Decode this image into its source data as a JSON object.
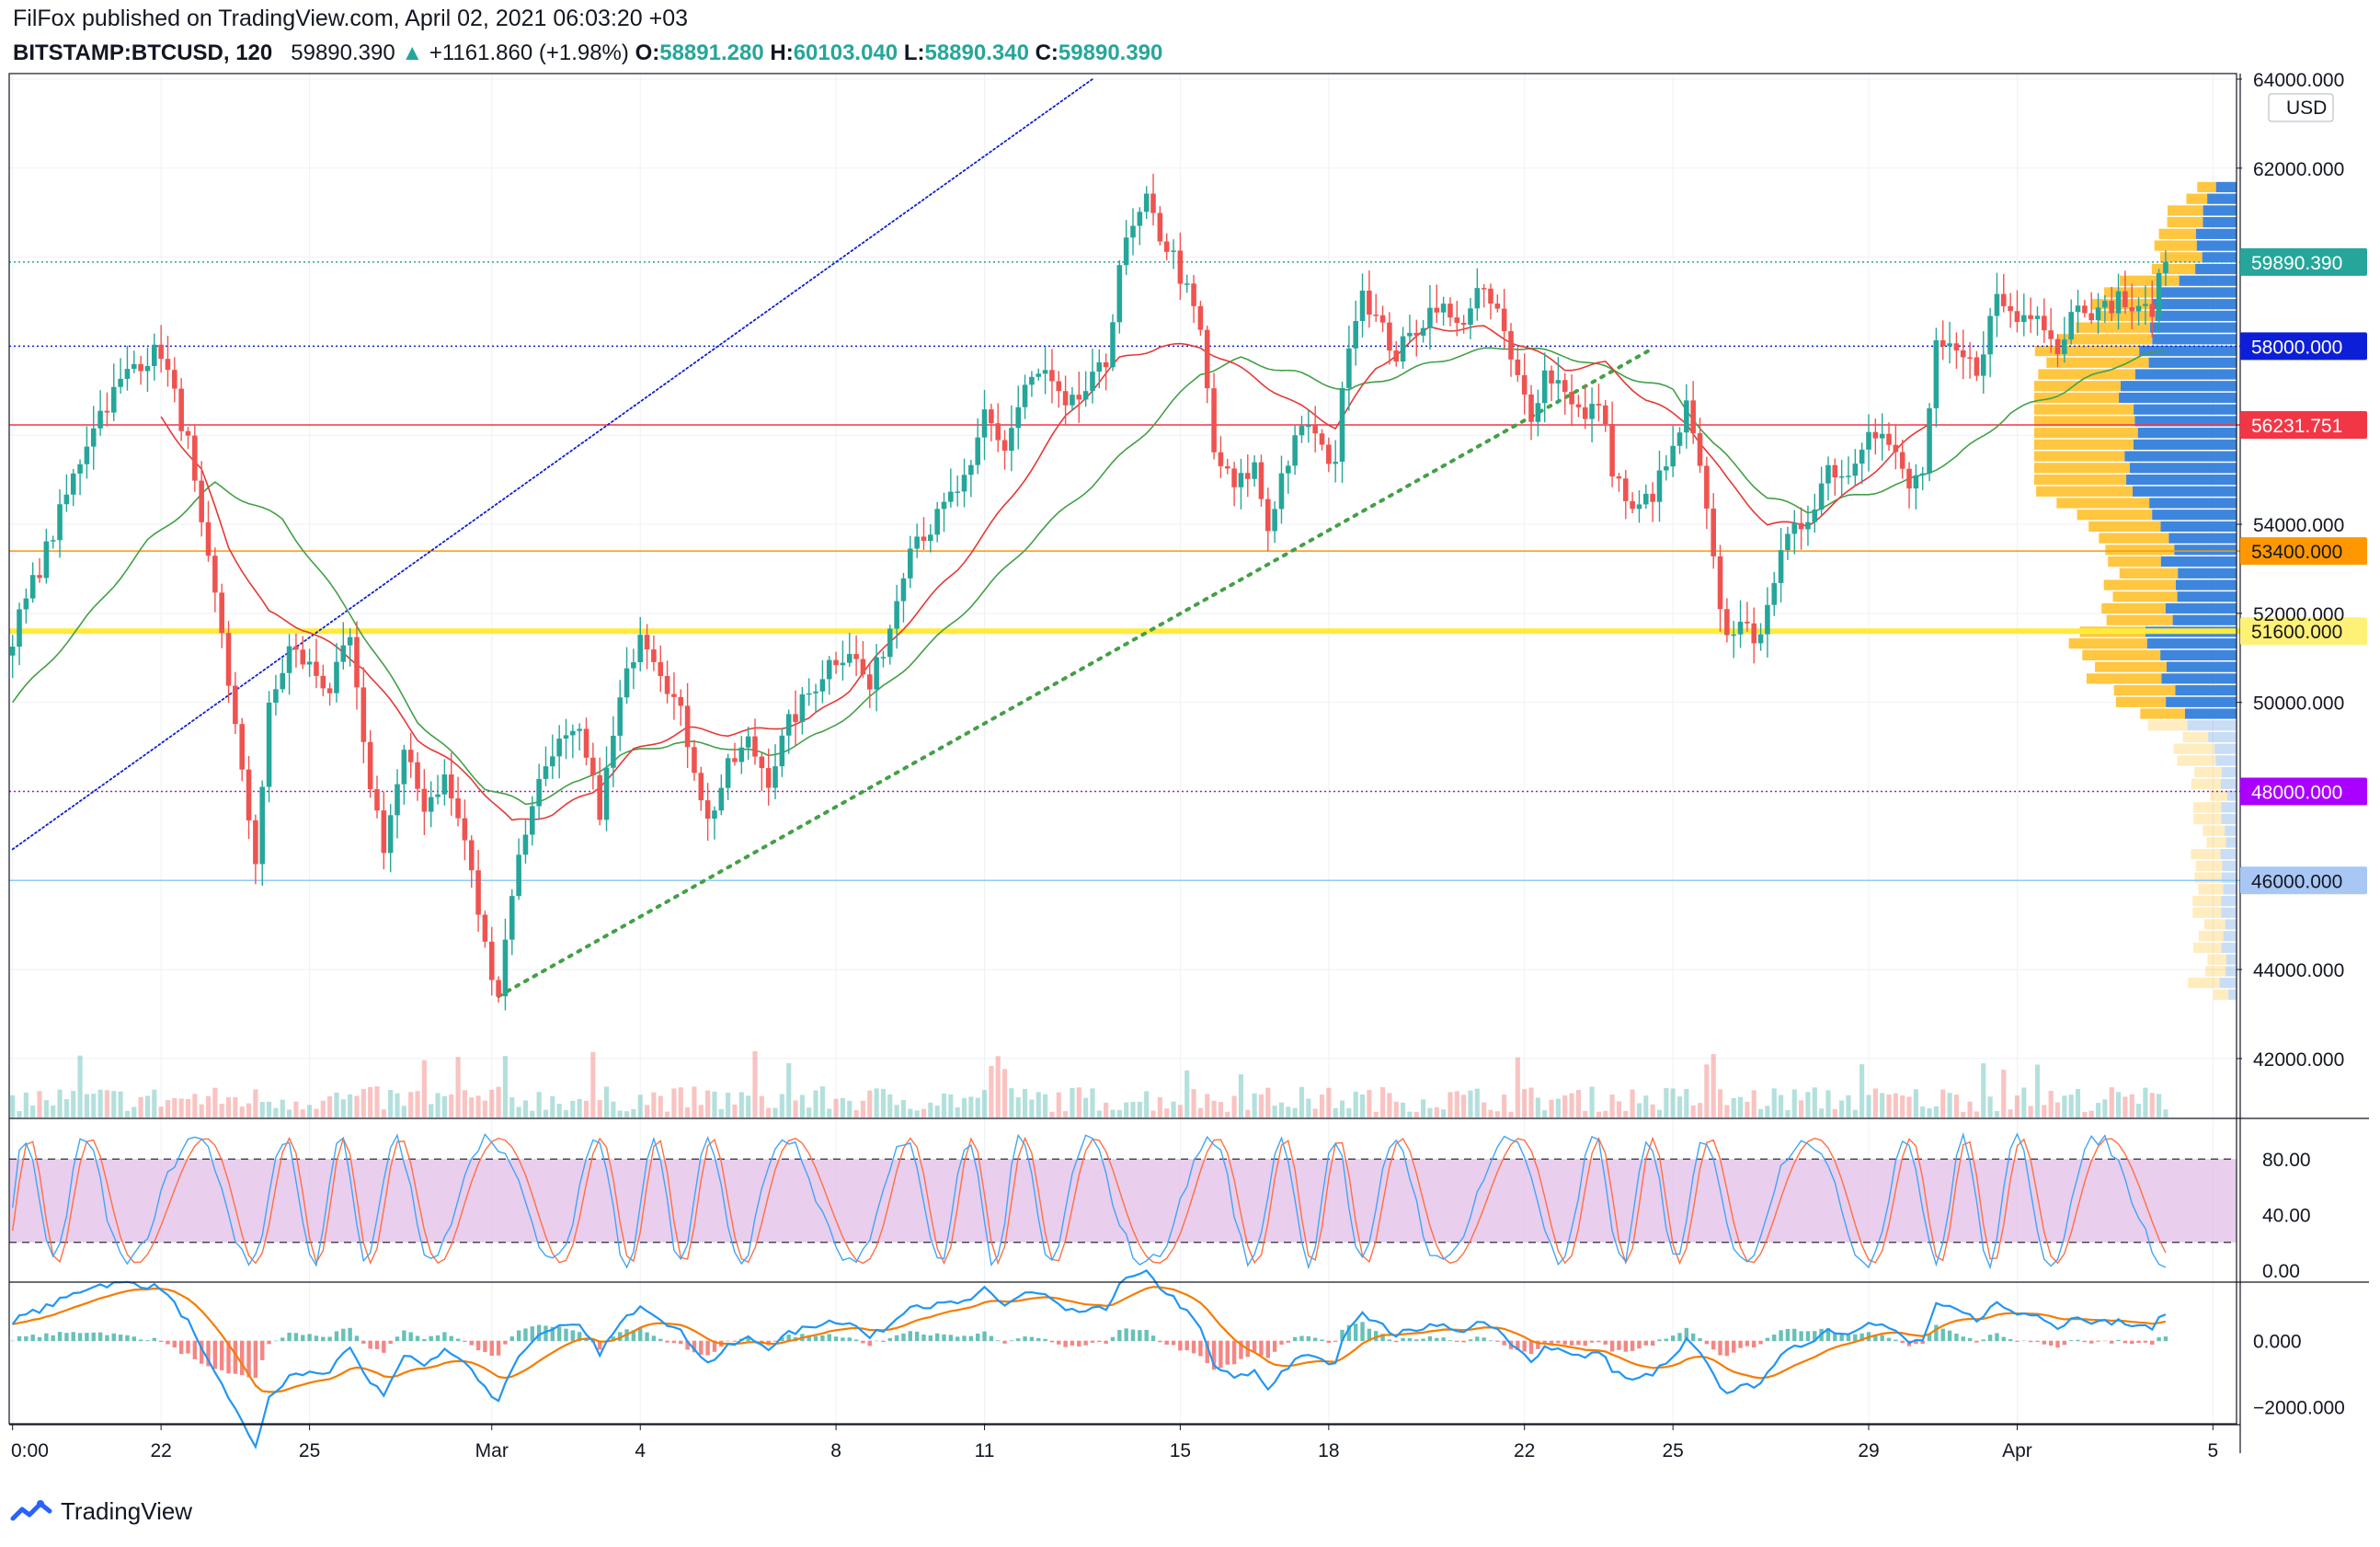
{
  "header": {
    "publisher": "FilFox published on TradingView.com, April 02, 2021 06:03:20 +03",
    "symbol": "BITSTAMP:BTCUSD, 120",
    "last": "59890.390",
    "change_arrow": "▲",
    "change": "+1161.860 (+1.98%)",
    "o_label": "O:",
    "o": "58891.280",
    "h_label": "H:",
    "h": "60103.040",
    "l_label": "L:",
    "l": "58890.340",
    "c_label": "C:",
    "c": "59890.390"
  },
  "footer": {
    "brand": "TradingView",
    "logo_icon": "tradingview-logo-icon"
  },
  "colors": {
    "up": "#26a69a",
    "down": "#ef5350",
    "ma_fast": "#e53935",
    "ma_slow": "#43a047",
    "macd": "#2196f3",
    "signal": "#f57c00",
    "stoch_band": "#e1bee7",
    "vp_up": "#2979d9",
    "vp_down": "#ffb300"
  },
  "chart_data": {
    "type": "candlestick",
    "currency": "USD",
    "price_axis": {
      "range": [
        40800,
        64000
      ],
      "ticks": [
        "64000.000",
        "62000.000",
        "54000.000",
        "52000.000",
        "50000.000",
        "44000.000",
        "42000.000"
      ]
    },
    "time_axis": {
      "labels": [
        "0:00",
        "22",
        "25",
        "Mar",
        "4",
        "8",
        "11",
        "15",
        "18",
        "22",
        "25",
        "29",
        "Apr",
        "5"
      ],
      "label_index": [
        0,
        22,
        44,
        71,
        93,
        122,
        144,
        173,
        195,
        224,
        246,
        275,
        297,
        326
      ]
    },
    "horizontal_levels": [
      {
        "value": 59890.39,
        "label": "59890.390",
        "style": "dotted",
        "color": "#26a69a",
        "badge_bg": "#26a69a",
        "badge_fg": "#ffffff"
      },
      {
        "value": 58000,
        "label": "58000.000",
        "style": "dotted",
        "color": "#0d1fd6",
        "badge_bg": "#0d1fd6",
        "badge_fg": "#ffffff"
      },
      {
        "value": 56231.751,
        "label": "56231.751",
        "style": "solid",
        "color": "#f23645",
        "badge_bg": "#f23645",
        "badge_fg": "#ffffff"
      },
      {
        "value": 53400,
        "label": "53400.000",
        "style": "solid",
        "color": "#ff9800",
        "badge_bg": "#ff9800",
        "badge_fg": "#131722"
      },
      {
        "value": 51600,
        "label": "51600.000",
        "style": "solid-thick",
        "color": "#ffeb3b",
        "badge_bg": "#fff176",
        "badge_fg": "#131722"
      },
      {
        "value": 48000,
        "label": "48000.000",
        "style": "dotted",
        "color": "#9c27b0",
        "badge_bg": "#aa00ff",
        "badge_fg": "#ffffff"
      },
      {
        "value": 46000,
        "label": "46000.000",
        "style": "solid",
        "color": "#90caf9",
        "badge_bg": "#a9c7f5",
        "badge_fg": "#131722"
      }
    ],
    "trendlines": [
      {
        "name": "upper channel",
        "style": "dotted",
        "color": "#0d1fd6",
        "from": {
          "bar": 0,
          "price": 46700
        },
        "to": {
          "bar": 160,
          "price": 64000
        }
      },
      {
        "name": "support trend",
        "style": "dotted-thick",
        "color": "#43a047",
        "from": {
          "bar": 72,
          "price": 43400
        },
        "to": {
          "bar": 243,
          "price": 57950
        }
      }
    ],
    "candle_anchors": [
      [
        0,
        51500
      ],
      [
        6,
        53800
      ],
      [
        12,
        56300
      ],
      [
        18,
        57600
      ],
      [
        22,
        57900
      ],
      [
        26,
        55800
      ],
      [
        28,
        53800
      ],
      [
        31,
        51600
      ],
      [
        34,
        48300
      ],
      [
        36,
        46500
      ],
      [
        38,
        49800
      ],
      [
        41,
        51200
      ],
      [
        44,
        50800
      ],
      [
        47,
        50300
      ],
      [
        50,
        51400
      ],
      [
        52,
        48900
      ],
      [
        55,
        46800
      ],
      [
        58,
        48800
      ],
      [
        61,
        47700
      ],
      [
        64,
        48300
      ],
      [
        67,
        46900
      ],
      [
        70,
        44500
      ],
      [
        72,
        43500
      ],
      [
        74,
        45800
      ],
      [
        77,
        47800
      ],
      [
        80,
        49000
      ],
      [
        84,
        49200
      ],
      [
        87,
        47600
      ],
      [
        90,
        50000
      ],
      [
        93,
        51700
      ],
      [
        96,
        50800
      ],
      [
        99,
        49700
      ],
      [
        101,
        48600
      ],
      [
        103,
        47300
      ],
      [
        106,
        48500
      ],
      [
        109,
        49100
      ],
      [
        112,
        48300
      ],
      [
        115,
        49500
      ],
      [
        118,
        50200
      ],
      [
        121,
        50900
      ],
      [
        124,
        51200
      ],
      [
        127,
        50300
      ],
      [
        130,
        51700
      ],
      [
        133,
        53700
      ],
      [
        136,
        53900
      ],
      [
        139,
        54600
      ],
      [
        142,
        55100
      ],
      [
        144,
        56500
      ],
      [
        147,
        55700
      ],
      [
        150,
        57100
      ],
      [
        153,
        57400
      ],
      [
        156,
        56500
      ],
      [
        159,
        57000
      ],
      [
        162,
        57600
      ],
      [
        164,
        59900
      ],
      [
        166,
        60600
      ],
      [
        168,
        61200
      ],
      [
        170,
        60500
      ],
      [
        172,
        60000
      ],
      [
        174,
        59200
      ],
      [
        176,
        58300
      ],
      [
        178,
        55600
      ],
      [
        181,
        54800
      ],
      [
        184,
        55300
      ],
      [
        186,
        53900
      ],
      [
        188,
        55100
      ],
      [
        190,
        55800
      ],
      [
        192,
        56300
      ],
      [
        194,
        55600
      ],
      [
        196,
        55500
      ],
      [
        198,
        58200
      ],
      [
        200,
        59300
      ],
      [
        202,
        58600
      ],
      [
        205,
        57800
      ],
      [
        208,
        58400
      ],
      [
        211,
        59000
      ],
      [
        214,
        58400
      ],
      [
        217,
        59200
      ],
      [
        220,
        58800
      ],
      [
        222,
        57600
      ],
      [
        225,
        56500
      ],
      [
        227,
        57400
      ],
      [
        230,
        57100
      ],
      [
        233,
        56300
      ],
      [
        235,
        56800
      ],
      [
        237,
        55300
      ],
      [
        240,
        54200
      ],
      [
        243,
        54700
      ],
      [
        246,
        55600
      ],
      [
        248,
        56600
      ],
      [
        250,
        55200
      ],
      [
        252,
        53100
      ],
      [
        254,
        51400
      ],
      [
        256,
        52000
      ],
      [
        258,
        51100
      ],
      [
        260,
        52400
      ],
      [
        263,
        53600
      ],
      [
        266,
        54200
      ],
      [
        269,
        55300
      ],
      [
        272,
        55100
      ],
      [
        275,
        56300
      ],
      [
        278,
        55800
      ],
      [
        281,
        54800
      ],
      [
        283,
        55200
      ],
      [
        285,
        57900
      ],
      [
        288,
        57800
      ],
      [
        291,
        57500
      ],
      [
        294,
        59100
      ],
      [
        297,
        58600
      ],
      [
        300,
        58900
      ],
      [
        303,
        57900
      ],
      [
        306,
        59100
      ],
      [
        309,
        58700
      ],
      [
        312,
        59100
      ],
      [
        315,
        58700
      ],
      [
        317,
        58900
      ],
      [
        319,
        59890
      ]
    ],
    "ma_slow_anchors": [
      [
        0,
        50000
      ],
      [
        10,
        51700
      ],
      [
        20,
        53600
      ],
      [
        30,
        54900
      ],
      [
        40,
        54100
      ],
      [
        50,
        52000
      ],
      [
        60,
        49600
      ],
      [
        70,
        48100
      ],
      [
        76,
        47700
      ],
      [
        84,
        48200
      ],
      [
        90,
        48800
      ],
      [
        98,
        49100
      ],
      [
        106,
        49000
      ],
      [
        112,
        48800
      ],
      [
        120,
        49300
      ],
      [
        128,
        50200
      ],
      [
        136,
        51300
      ],
      [
        144,
        52500
      ],
      [
        152,
        53800
      ],
      [
        160,
        54900
      ],
      [
        168,
        56100
      ],
      [
        176,
        57400
      ],
      [
        182,
        57700
      ],
      [
        190,
        57400
      ],
      [
        198,
        57000
      ],
      [
        206,
        57400
      ],
      [
        214,
        57800
      ],
      [
        222,
        58000
      ],
      [
        230,
        57800
      ],
      [
        238,
        57400
      ],
      [
        246,
        57000
      ],
      [
        252,
        55800
      ],
      [
        260,
        54600
      ],
      [
        266,
        54300
      ],
      [
        272,
        54600
      ],
      [
        280,
        54900
      ],
      [
        288,
        55500
      ],
      [
        296,
        56500
      ],
      [
        304,
        57000
      ],
      [
        312,
        57600
      ],
      [
        319,
        57900
      ]
    ],
    "ma_fast_anchors": [
      [
        22,
        56400
      ],
      [
        28,
        55200
      ],
      [
        32,
        53500
      ],
      [
        38,
        52000
      ],
      [
        44,
        51600
      ],
      [
        52,
        50800
      ],
      [
        60,
        49200
      ],
      [
        68,
        48300
      ],
      [
        74,
        47300
      ],
      [
        80,
        47500
      ],
      [
        86,
        48000
      ],
      [
        92,
        48900
      ],
      [
        100,
        49400
      ],
      [
        106,
        49300
      ],
      [
        112,
        49400
      ],
      [
        118,
        49600
      ],
      [
        124,
        50300
      ],
      [
        132,
        51700
      ],
      [
        140,
        53000
      ],
      [
        148,
        54600
      ],
      [
        156,
        56400
      ],
      [
        164,
        57700
      ],
      [
        170,
        58000
      ],
      [
        176,
        58000
      ],
      [
        184,
        57300
      ],
      [
        190,
        56700
      ],
      [
        196,
        56200
      ],
      [
        202,
        57500
      ],
      [
        210,
        58400
      ],
      [
        218,
        58400
      ],
      [
        224,
        58000
      ],
      [
        230,
        57500
      ],
      [
        236,
        57600
      ],
      [
        242,
        56800
      ],
      [
        248,
        56300
      ],
      [
        254,
        55000
      ],
      [
        260,
        54000
      ],
      [
        266,
        54000
      ],
      [
        272,
        54700
      ],
      [
        278,
        55500
      ],
      [
        284,
        56300
      ]
    ],
    "volume_profile": {
      "price_range": [
        43300,
        61700
      ],
      "rows": 70,
      "note": "horizontal volume-by-price histogram drawn at right edge"
    },
    "stochastic": {
      "axis_ticks": [
        "80.00",
        "40.00",
        "0.00"
      ],
      "range": [
        0,
        100
      ],
      "band": [
        20,
        80
      ]
    },
    "macd": {
      "axis_ticks": [
        "0.000",
        "−2000.000"
      ],
      "range": [
        -2300,
        1500
      ]
    }
  }
}
